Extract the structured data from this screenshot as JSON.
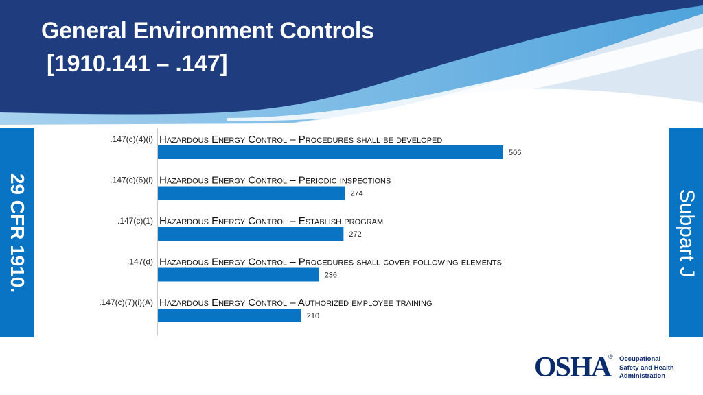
{
  "header": {
    "title_line1": "General Environment Controls",
    "title_line2": "[1910.141 – .147]"
  },
  "left_tab": {
    "label": "29 CFR 1910."
  },
  "right_tab": {
    "label": "Subpart J"
  },
  "chart_data": {
    "type": "bar",
    "orientation": "horizontal",
    "categories": [
      {
        "code": ".147(c)(4)(i)",
        "description": "Hazardous Energy Control – Procedures shall be developed"
      },
      {
        "code": ".147(c)(6)(i)",
        "description": "Hazardous Energy Control – Periodic inspections"
      },
      {
        "code": ".147(c)(1)",
        "description": "Hazardous Energy Control – Establish program"
      },
      {
        "code": ".147(d)",
        "description": "Hazardous Energy Control – Procedures shall cover following elements"
      },
      {
        "code": ".147(c)(7)(i)(A)",
        "description": "Hazardous Energy Control – Authorized employee training"
      }
    ],
    "values": [
      506,
      274,
      272,
      236,
      210
    ],
    "value_labels": [
      "506",
      "274",
      "272",
      "236",
      "210"
    ],
    "bar_color": "#0a74c4",
    "xlim": [
      0,
      506
    ],
    "grid": false,
    "legend": "none"
  },
  "logo": {
    "mark": "OSHA",
    "registered": "®",
    "lines": [
      "Occupational",
      "Safety and Health",
      "Administration"
    ]
  },
  "colors": {
    "header_dark": "#1f3d7e",
    "header_light": "#5fa9dc",
    "accent": "#0a74c4"
  }
}
